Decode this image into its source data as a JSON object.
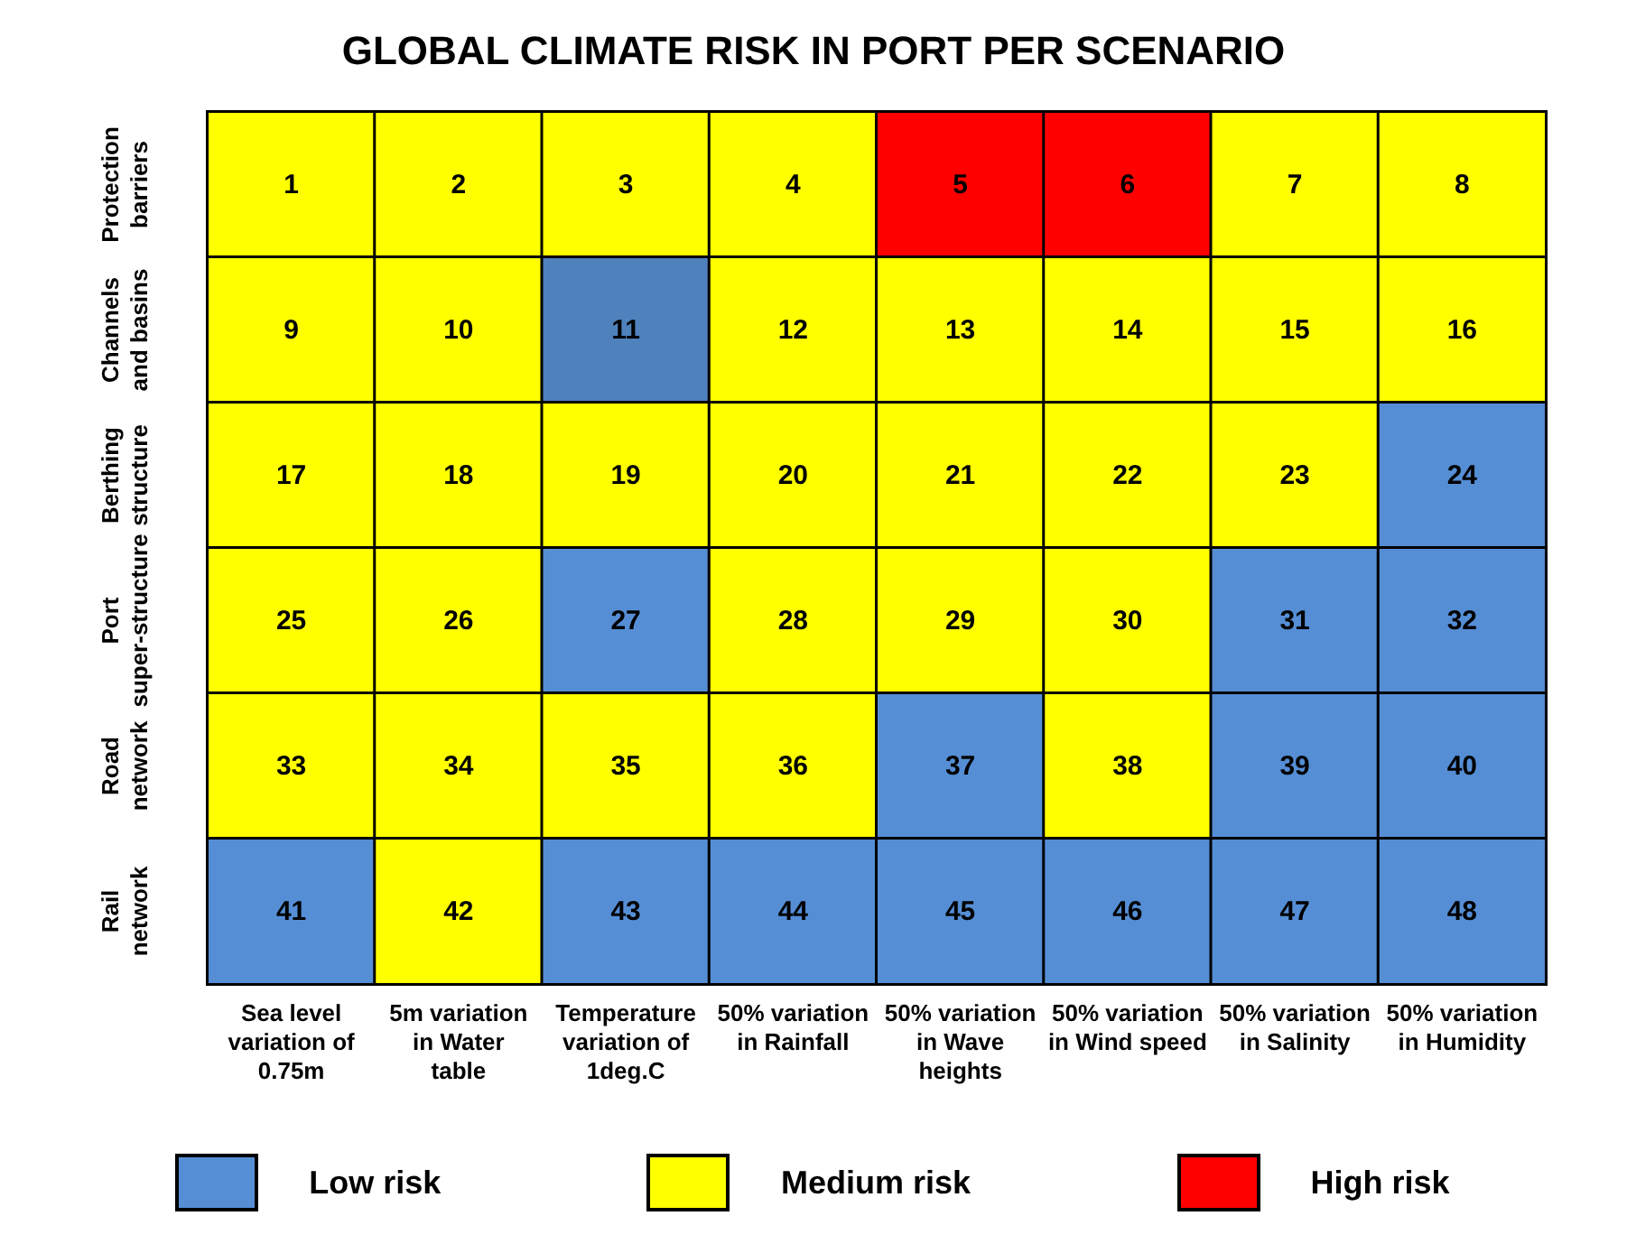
{
  "chart_data": {
    "type": "heatmap",
    "title": "GLOBAL CLIMATE RISK IN PORT PER SCENARIO",
    "categories": [
      "Sea level variation of 0.75m",
      "5m variation in Water table",
      "Temperature variation of 1deg.C",
      "50% variation in Rainfall",
      "50% variation in Wave heights",
      "50% variation in Wind speed",
      "50% variation in Salinity",
      "50% variation in Humidity"
    ],
    "y_categories": [
      "Protection barriers",
      "Channels and basins",
      "Berthing structure",
      "Port super-structure",
      "Road network",
      "Rail network"
    ],
    "cells": [
      [
        1,
        2,
        3,
        4,
        5,
        6,
        7,
        8
      ],
      [
        9,
        10,
        11,
        12,
        13,
        14,
        15,
        16
      ],
      [
        17,
        18,
        19,
        20,
        21,
        22,
        23,
        24
      ],
      [
        25,
        26,
        27,
        28,
        29,
        30,
        31,
        32
      ],
      [
        33,
        34,
        35,
        36,
        37,
        38,
        39,
        40
      ],
      [
        41,
        42,
        43,
        44,
        45,
        46,
        47,
        48
      ]
    ],
    "colors": [
      [
        "#ffff00",
        "#ffff00",
        "#ffff00",
        "#ffff00",
        "#ff0000",
        "#ff0000",
        "#ffff00",
        "#ffff00"
      ],
      [
        "#ffff00",
        "#ffff00",
        "#4f81bd",
        "#ffff00",
        "#ffff00",
        "#ffff00",
        "#ffff00",
        "#ffff00"
      ],
      [
        "#ffff00",
        "#ffff00",
        "#ffff00",
        "#ffff00",
        "#ffff00",
        "#ffff00",
        "#ffff00",
        "#558ed5"
      ],
      [
        "#ffff00",
        "#ffff00",
        "#558ed5",
        "#ffff00",
        "#ffff00",
        "#ffff00",
        "#558ed5",
        "#558ed5"
      ],
      [
        "#ffff00",
        "#ffff00",
        "#ffff00",
        "#ffff00",
        "#558ed5",
        "#ffff00",
        "#558ed5",
        "#558ed5"
      ],
      [
        "#558ed5",
        "#ffff00",
        "#558ed5",
        "#558ed5",
        "#558ed5",
        "#558ed5",
        "#558ed5",
        "#558ed5"
      ]
    ],
    "series": [
      {
        "name": "Low risk",
        "color": "#558ed5",
        "values": [
          null,
          null,
          null,
          null,
          null,
          null,
          null,
          null
        ]
      },
      {
        "name": "Medium risk",
        "color": "#ffff00",
        "values": [
          null,
          null,
          null,
          null,
          null,
          null,
          null,
          null
        ]
      },
      {
        "name": "High risk",
        "color": "#ff0000",
        "values": [
          null,
          null,
          null,
          null,
          null,
          null,
          null,
          null
        ]
      }
    ],
    "data_labels": true,
    "legend": "bottom"
  }
}
